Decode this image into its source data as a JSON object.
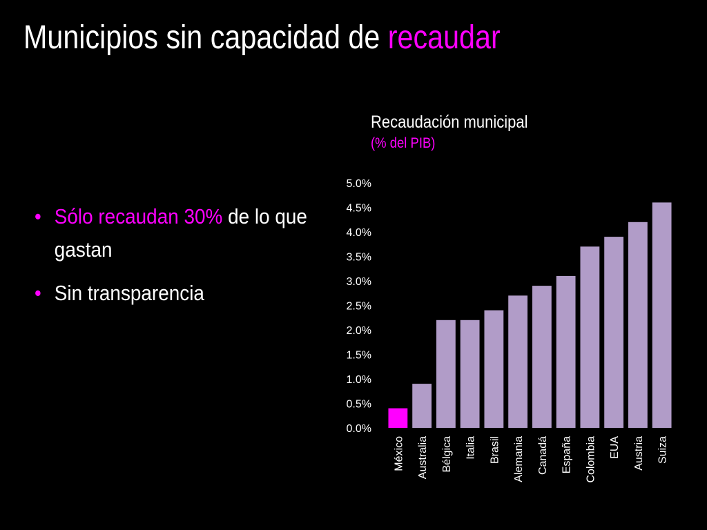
{
  "slide": {
    "title_main": "Municipios sin capacidad de ",
    "title_accent": "recaudar",
    "bullets": [
      {
        "highlight": "Sólo recaudan 30%",
        "text": " de lo que gastan"
      },
      {
        "highlight": "",
        "text": "Sin transparencia"
      }
    ]
  },
  "colors": {
    "background": "#000000",
    "accent": "#ff00ff",
    "bar": "#b19cc8",
    "highlight_bar": "#ff00ff",
    "text": "#ffffff"
  },
  "chart_data": {
    "type": "bar",
    "title": "Recaudación municipal",
    "subtitle": "(% del PIB)",
    "categories": [
      "México",
      "Australia",
      "Bélgica",
      "Italia",
      "Brasil",
      "Alemania",
      "Canadá",
      "España",
      "Colombia",
      "EUA",
      "Austria",
      "Suiza"
    ],
    "values": [
      0.4,
      0.9,
      2.2,
      2.2,
      2.4,
      2.7,
      2.9,
      3.1,
      3.7,
      3.9,
      4.2,
      4.6
    ],
    "highlighted_category": "México",
    "ylim": [
      0,
      5
    ],
    "yticks": [
      "0.0%",
      "0.5%",
      "1.0%",
      "1.5%",
      "2.0%",
      "2.5%",
      "3.0%",
      "3.5%",
      "4.0%",
      "4.5%",
      "5.0%"
    ],
    "grid": false,
    "legend": "none"
  }
}
